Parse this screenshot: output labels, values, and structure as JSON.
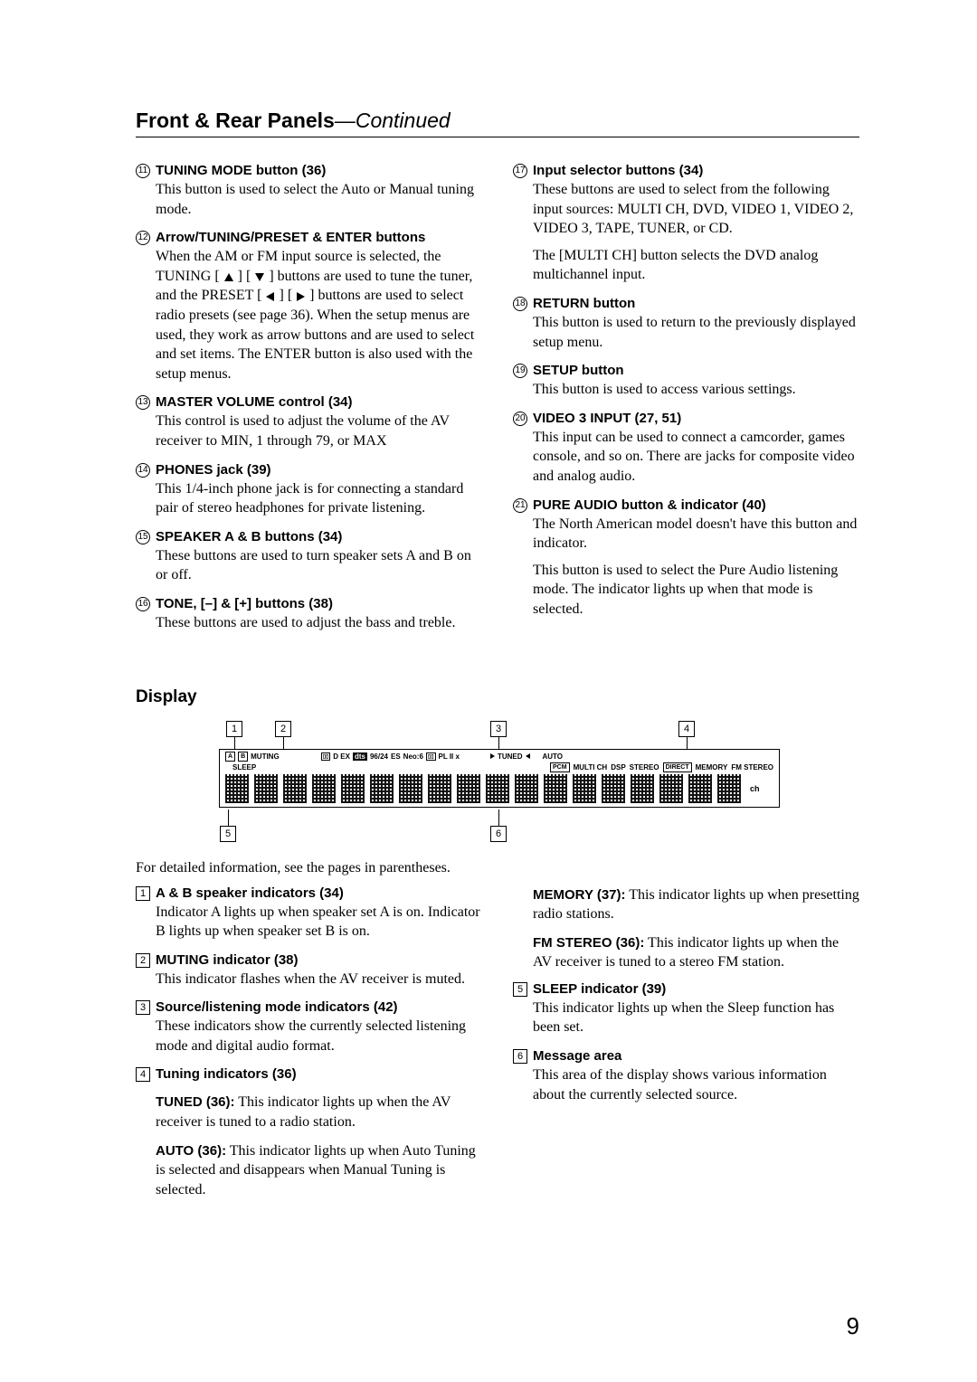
{
  "page": {
    "title_left": "Front & Rear Panels",
    "title_right": "—Continued",
    "number": "9"
  },
  "items_left": [
    {
      "num": "11",
      "title": "TUNING MODE button (36)",
      "paras": [
        "This button is used to select the Auto or Manual tuning mode."
      ]
    },
    {
      "num": "12",
      "title": "Arrow/TUNING/PRESET & ENTER buttons",
      "paras": [
        "When the AM or FM input source is selected, the TUNING [▲] [▼] buttons are used to tune the tuner, and the PRESET [◀] [▶] buttons are used to select radio presets (see page 36). When the setup menus are used, they work as arrow buttons and are used to select and set items. The ENTER button is also used with the setup menus."
      ]
    },
    {
      "num": "13",
      "title": "MASTER VOLUME control (34)",
      "paras": [
        "This control is used to adjust the volume of the AV receiver to MIN, 1 through 79, or MAX"
      ]
    },
    {
      "num": "14",
      "title": "PHONES jack (39)",
      "paras": [
        "This 1/4-inch phone jack is for connecting a standard pair of stereo headphones for private listening."
      ]
    },
    {
      "num": "15",
      "title": "SPEAKER A & B buttons (34)",
      "paras": [
        "These buttons are used to turn speaker sets A and B on or off."
      ]
    },
    {
      "num": "16",
      "title": "TONE, [–] & [+] buttons (38)",
      "paras": [
        "These buttons are used to adjust the bass and treble."
      ]
    }
  ],
  "items_right": [
    {
      "num": "17",
      "title": "Input selector buttons (34)",
      "paras": [
        "These buttons are used to select from the following input sources: MULTI CH, DVD, VIDEO 1, VIDEO 2, VIDEO 3, TAPE, TUNER, or CD.",
        "The [MULTI CH] button selects the DVD analog multichannel input."
      ]
    },
    {
      "num": "18",
      "title": "RETURN button",
      "paras": [
        "This button is used to return to the previously displayed setup menu."
      ]
    },
    {
      "num": "19",
      "title": "SETUP button",
      "paras": [
        "This button is used to access various settings."
      ]
    },
    {
      "num": "20",
      "title": "VIDEO 3 INPUT (27, 51)",
      "paras": [
        "This input can be used to connect a camcorder, games console, and so on. There are jacks for composite video and analog audio."
      ]
    },
    {
      "num": "21",
      "title": "PURE AUDIO button & indicator (40)",
      "paras": [
        "The North American model doesn't have this button and indicator.",
        "This button is used to select the Pure Audio listening mode. The indicator lights up when that mode is selected."
      ]
    }
  ],
  "display": {
    "section_title": "Display",
    "lead": "For detailed information, see the pages in parentheses.",
    "top_labels": {
      "1": "1",
      "2": "2",
      "3": "3",
      "4": "4"
    },
    "bottom_labels": {
      "5": "5",
      "6": "6"
    },
    "row1": {
      "a": "A",
      "b": "B",
      "muting": "MUTING",
      "dex": "D EX",
      "dts": "dts",
      "w9624": "96/24",
      "es": "ES",
      "neo6": "Neo:6",
      "pl2x": "PL II x",
      "tuned": "TUNED",
      "auto": "AUTO"
    },
    "row2": {
      "sleep": "SLEEP",
      "pcm": "PCM",
      "multich": "MULTI CH",
      "dsp": "DSP",
      "stereo": "STEREO",
      "direct": "DIRECT",
      "memory": "MEMORY",
      "fmstereo": "FM STEREO"
    },
    "ch": "ch"
  },
  "disp_left": [
    {
      "num": "1",
      "title": "A & B speaker indicators (34)",
      "paras": [
        "Indicator A lights up when speaker set A is on. Indicator B lights up when speaker set B is on."
      ]
    },
    {
      "num": "2",
      "title": "MUTING indicator (38)",
      "paras": [
        "This indicator flashes when the AV receiver is muted."
      ]
    },
    {
      "num": "3",
      "title": "Source/listening mode indicators (42)",
      "paras": [
        "These indicators show the currently selected listening mode and digital audio format."
      ]
    },
    {
      "num": "4",
      "title": "Tuning indicators (36)",
      "paras": []
    }
  ],
  "disp_left_sub": [
    {
      "bold": "TUNED (36):",
      "text": " This indicator lights up when the AV receiver is tuned to a radio station."
    },
    {
      "bold": "AUTO (36):",
      "text": " This indicator lights up when Auto Tuning is selected and disappears when Manual Tuning is selected."
    }
  ],
  "disp_right_sub": [
    {
      "bold": "MEMORY (37):",
      "text": " This indicator lights up when presetting radio stations."
    },
    {
      "bold": "FM STEREO (36):",
      "text": " This indicator lights up when the AV receiver is tuned to a stereo FM station."
    }
  ],
  "disp_right": [
    {
      "num": "5",
      "title": "SLEEP indicator (39)",
      "paras": [
        "This indicator lights up when the Sleep function has been set."
      ]
    },
    {
      "num": "6",
      "title": "Message area",
      "paras": [
        "This area of the display shows various information about the currently selected source."
      ]
    }
  ]
}
